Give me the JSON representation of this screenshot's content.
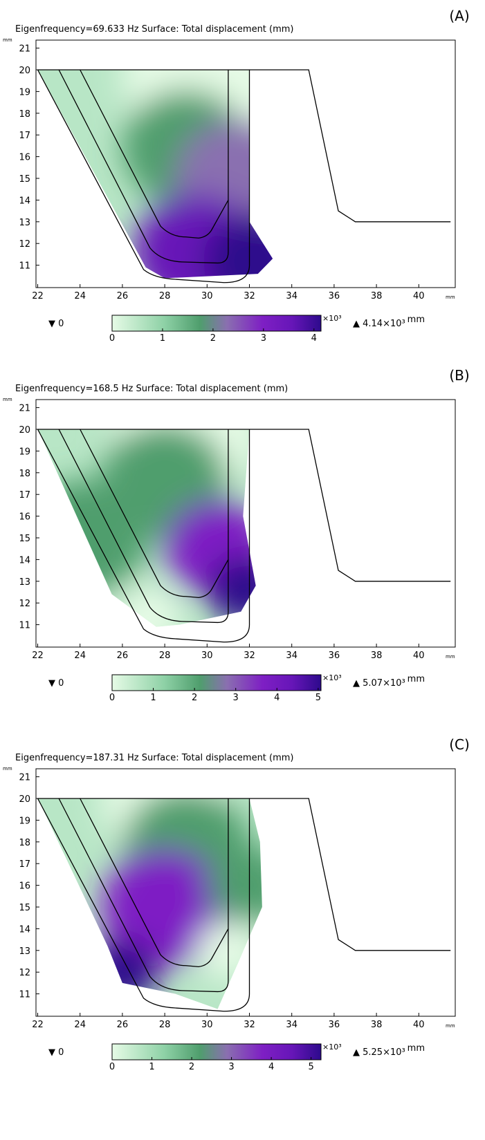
{
  "chart_data": [
    {
      "type": "heatmap",
      "panel_label": "(A)",
      "title": "Eigenfrequency=69.633 Hz   Surface: Total displacement (mm)",
      "eigenfrequency_hz": 69.633,
      "x_unit": "mm",
      "y_unit": "mm",
      "xlim": [
        21.9,
        41.5
      ],
      "ylim": [
        10.1,
        21.5
      ],
      "x_ticks": [
        22,
        24,
        26,
        28,
        30,
        32,
        34,
        36,
        38,
        40
      ],
      "y_ticks": [
        11,
        12,
        13,
        14,
        15,
        16,
        17,
        18,
        19,
        20,
        21
      ],
      "colorbar": {
        "range": [
          0,
          4.14
        ],
        "ticks": [
          0,
          1,
          2,
          3,
          4
        ],
        "exponent_label": "×10³",
        "unit": "mm",
        "min_marker": "▼ 0",
        "max_marker": "▲ 4.14×10³"
      },
      "displacement_field": {
        "region_outline": [
          [
            22,
            20
          ],
          [
            32,
            20
          ],
          [
            32,
            13
          ],
          [
            33.1,
            11.3
          ],
          [
            32.4,
            10.6
          ],
          [
            28,
            10.4
          ],
          [
            27.1,
            10.9
          ],
          [
            22,
            20
          ]
        ],
        "samples": [
          {
            "x": 30,
            "y": 19.7,
            "value": 0.1,
            "radius": 4
          },
          {
            "x": 29,
            "y": 16.4,
            "value": 1.5,
            "radius": 3
          },
          {
            "x": 31.5,
            "y": 15.0,
            "value": 2.5,
            "radius": 3
          },
          {
            "x": 29.5,
            "y": 11.6,
            "value": 3.4,
            "radius": 3
          },
          {
            "x": 32.3,
            "y": 11.2,
            "value": 4.14,
            "radius": 2.5
          }
        ]
      }
    },
    {
      "type": "heatmap",
      "panel_label": "(B)",
      "title": "Eigenfrequency=168.5 Hz   Surface: Total displacement (mm)",
      "eigenfrequency_hz": 168.5,
      "x_unit": "mm",
      "y_unit": "mm",
      "xlim": [
        21.9,
        41.5
      ],
      "ylim": [
        10.1,
        21.5
      ],
      "x_ticks": [
        22,
        24,
        26,
        28,
        30,
        32,
        34,
        36,
        38,
        40
      ],
      "y_ticks": [
        11,
        12,
        13,
        14,
        15,
        16,
        17,
        18,
        19,
        20,
        21
      ],
      "colorbar": {
        "range": [
          0,
          5.07
        ],
        "ticks": [
          0,
          1,
          2,
          3,
          4,
          5
        ],
        "exponent_label": "×10³",
        "unit": "mm",
        "min_marker": "▼ 0",
        "max_marker": "▲ 5.07×10³"
      },
      "displacement_field": {
        "region_outline": [
          [
            22,
            20
          ],
          [
            32,
            20
          ],
          [
            31.7,
            16
          ],
          [
            32.3,
            12.8
          ],
          [
            31.6,
            11.6
          ],
          [
            28.7,
            11
          ],
          [
            27.6,
            10.9
          ],
          [
            25.5,
            12.4
          ],
          [
            22,
            20
          ]
        ],
        "samples": [
          {
            "x": 29,
            "y": 19.8,
            "value": 0.1,
            "radius": 3.5
          },
          {
            "x": 28,
            "y": 17.6,
            "value": 1.8,
            "radius": 3
          },
          {
            "x": 24.2,
            "y": 15.0,
            "value": 2.2,
            "radius": 3
          },
          {
            "x": 27.2,
            "y": 11.3,
            "value": 0.4,
            "radius": 1.6
          },
          {
            "x": 30.5,
            "y": 14.5,
            "value": 3.6,
            "radius": 2.5
          },
          {
            "x": 31.8,
            "y": 12.6,
            "value": 5.07,
            "radius": 1.8
          }
        ]
      }
    },
    {
      "type": "heatmap",
      "panel_label": "(C)",
      "title": "Eigenfrequency=187.31 Hz   Surface: Total displacement (mm)",
      "eigenfrequency_hz": 187.31,
      "x_unit": "mm",
      "y_unit": "mm",
      "xlim": [
        21.9,
        41.5
      ],
      "ylim": [
        10.1,
        21.5
      ],
      "x_ticks": [
        22,
        24,
        26,
        28,
        30,
        32,
        34,
        36,
        38,
        40
      ],
      "y_ticks": [
        11,
        12,
        13,
        14,
        15,
        16,
        17,
        18,
        19,
        20,
        21
      ],
      "colorbar": {
        "range": [
          0,
          5.25
        ],
        "ticks": [
          0,
          1,
          2,
          3,
          4,
          5
        ],
        "exponent_label": "×10³",
        "unit": "mm",
        "min_marker": "▼ 0",
        "max_marker": "▲ 5.25×10³"
      },
      "displacement_field": {
        "region_outline": [
          [
            22,
            20
          ],
          [
            32,
            20
          ],
          [
            32.5,
            18
          ],
          [
            32.6,
            15
          ],
          [
            31.5,
            12.5
          ],
          [
            30.5,
            10.3
          ],
          [
            28.5,
            11
          ],
          [
            26,
            11.5
          ],
          [
            25.3,
            13.2
          ],
          [
            22,
            20
          ]
        ],
        "samples": [
          {
            "x": 28,
            "y": 19.9,
            "value": 0.2,
            "radius": 3
          },
          {
            "x": 29,
            "y": 17.8,
            "value": 2.0,
            "radius": 3
          },
          {
            "x": 28,
            "y": 15.0,
            "value": 3.7,
            "radius": 3
          },
          {
            "x": 31,
            "y": 13.0,
            "value": 0.2,
            "radius": 1.5
          },
          {
            "x": 26,
            "y": 12.0,
            "value": 5.25,
            "radius": 1.7
          },
          {
            "x": 32,
            "y": 16.0,
            "value": 2.5,
            "radius": 2
          }
        ]
      }
    }
  ]
}
